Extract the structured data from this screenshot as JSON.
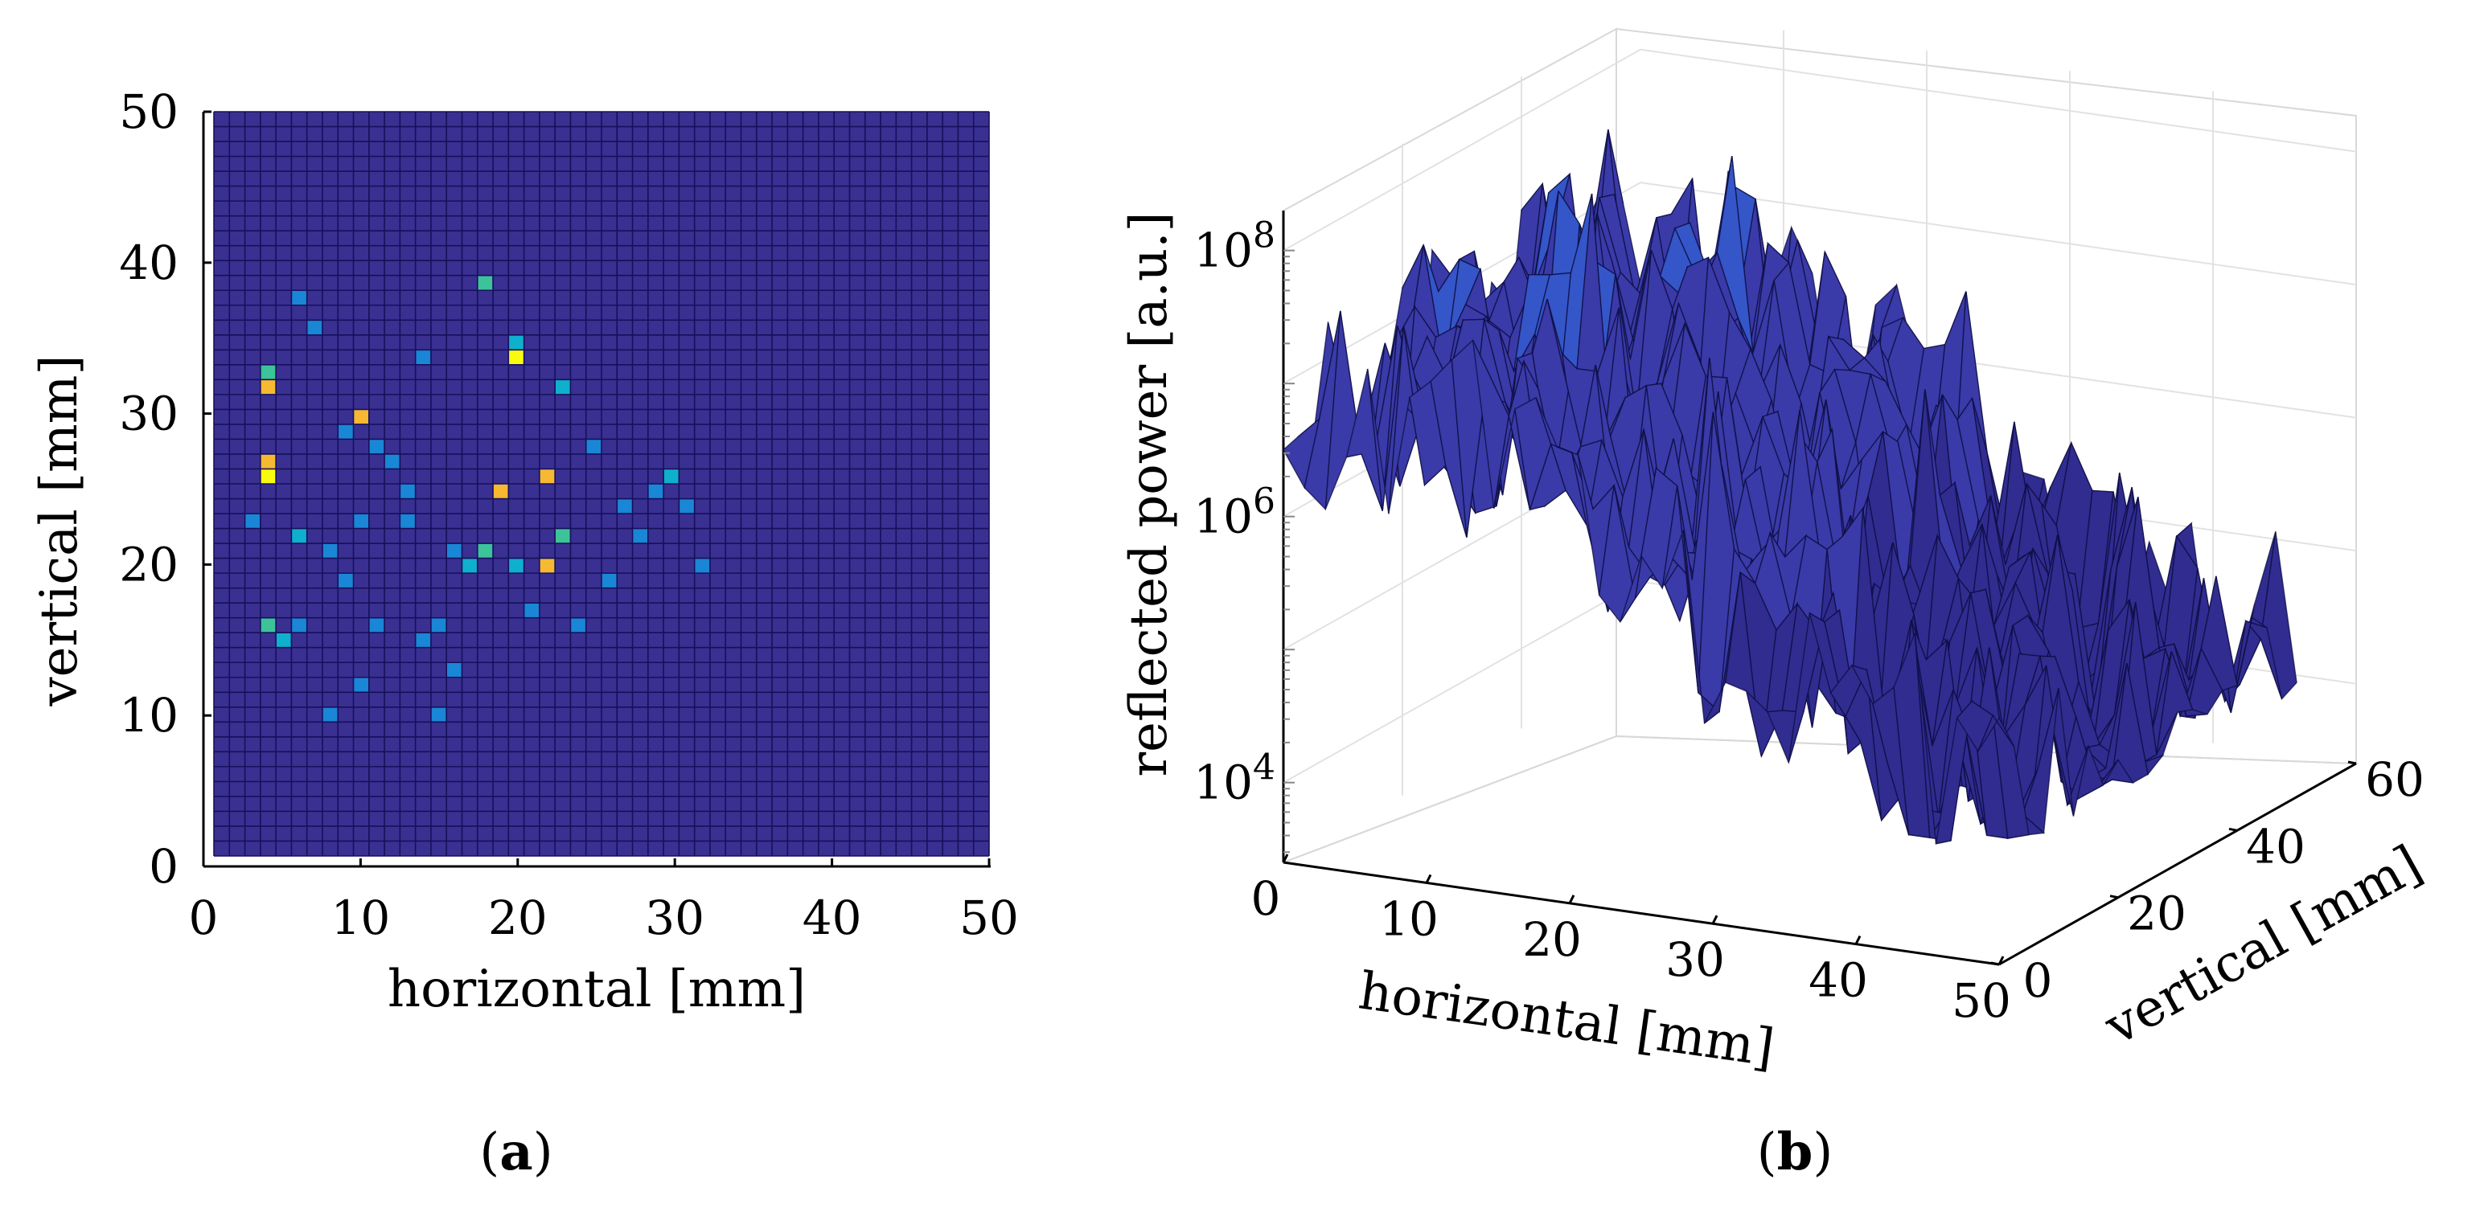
{
  "chart_data": [
    {
      "type": "heatmap",
      "panel_label": {
        "open": "(",
        "letter": "a",
        "close": ")"
      },
      "xlabel": "horizontal [mm]",
      "ylabel": "vertical [mm]",
      "xlim": [
        0,
        50
      ],
      "ylim": [
        0,
        50
      ],
      "x_ticks": [
        "0",
        "10",
        "20",
        "30",
        "40",
        "50"
      ],
      "y_ticks": [
        "0",
        "10",
        "20",
        "30",
        "40",
        "50"
      ],
      "grid_cells": [
        50,
        50
      ],
      "colormap": [
        "#352a87",
        "#2e4fd0",
        "#1a86d6",
        "#0fb0cd",
        "#3cc39a",
        "#a7c044",
        "#f6b931",
        "#f9fb0e"
      ],
      "background_color": "#3a3092",
      "cell_border_color": "#15105a",
      "hotspots": [
        {
          "x": 3,
          "y": 31,
          "level": 6
        },
        {
          "x": 3,
          "y": 32,
          "level": 4
        },
        {
          "x": 3,
          "y": 26,
          "level": 6
        },
        {
          "x": 3,
          "y": 25,
          "level": 7
        },
        {
          "x": 3,
          "y": 15,
          "level": 4
        },
        {
          "x": 4,
          "y": 14,
          "level": 3
        },
        {
          "x": 9,
          "y": 29,
          "level": 6
        },
        {
          "x": 8,
          "y": 28,
          "level": 2
        },
        {
          "x": 10,
          "y": 27,
          "level": 2
        },
        {
          "x": 11,
          "y": 26,
          "level": 2
        },
        {
          "x": 19,
          "y": 33,
          "level": 7
        },
        {
          "x": 19,
          "y": 34,
          "level": 3
        },
        {
          "x": 17,
          "y": 38,
          "level": 4
        },
        {
          "x": 22,
          "y": 31,
          "level": 3
        },
        {
          "x": 18,
          "y": 24,
          "level": 6
        },
        {
          "x": 21,
          "y": 25,
          "level": 6
        },
        {
          "x": 21,
          "y": 19,
          "level": 6
        },
        {
          "x": 22,
          "y": 21,
          "level": 4
        },
        {
          "x": 17,
          "y": 20,
          "level": 4
        },
        {
          "x": 16,
          "y": 19,
          "level": 3
        },
        {
          "x": 19,
          "y": 19,
          "level": 3
        },
        {
          "x": 15,
          "y": 20,
          "level": 2
        },
        {
          "x": 12,
          "y": 24,
          "level": 2
        },
        {
          "x": 12,
          "y": 22,
          "level": 2
        },
        {
          "x": 5,
          "y": 21,
          "level": 3
        },
        {
          "x": 7,
          "y": 20,
          "level": 2
        },
        {
          "x": 9,
          "y": 22,
          "level": 2
        },
        {
          "x": 29,
          "y": 25,
          "level": 3
        },
        {
          "x": 28,
          "y": 24,
          "level": 2
        },
        {
          "x": 30,
          "y": 23,
          "level": 2
        },
        {
          "x": 26,
          "y": 23,
          "level": 2
        },
        {
          "x": 24,
          "y": 27,
          "level": 2
        },
        {
          "x": 13,
          "y": 33,
          "level": 2
        },
        {
          "x": 5,
          "y": 37,
          "level": 2
        },
        {
          "x": 6,
          "y": 35,
          "level": 2
        },
        {
          "x": 13,
          "y": 14,
          "level": 2
        },
        {
          "x": 9,
          "y": 11,
          "level": 2
        },
        {
          "x": 7,
          "y": 9,
          "level": 2
        },
        {
          "x": 14,
          "y": 9,
          "level": 2
        },
        {
          "x": 15,
          "y": 12,
          "level": 2
        },
        {
          "x": 23,
          "y": 15,
          "level": 2
        },
        {
          "x": 20,
          "y": 16,
          "level": 2
        },
        {
          "x": 25,
          "y": 18,
          "level": 2
        },
        {
          "x": 8,
          "y": 18,
          "level": 2
        },
        {
          "x": 5,
          "y": 15,
          "level": 2
        },
        {
          "x": 14,
          "y": 15,
          "level": 2
        },
        {
          "x": 27,
          "y": 21,
          "level": 2
        },
        {
          "x": 31,
          "y": 19,
          "level": 2
        },
        {
          "x": 10,
          "y": 15,
          "level": 2
        },
        {
          "x": 2,
          "y": 22,
          "level": 2
        }
      ]
    },
    {
      "type": "surface",
      "panel_label": {
        "open": "(",
        "letter": "b",
        "close": ")"
      },
      "xlabel": "horizontal [mm]",
      "ylabel": "vertical [mm]",
      "zlabel": "reflected power [a.u.]",
      "zscale": "log",
      "x_ticks": [
        "0",
        "10",
        "20",
        "30",
        "40",
        "50"
      ],
      "y_ticks": [
        "0",
        "20",
        "40",
        "60"
      ],
      "z_ticks": [
        {
          "base": "10",
          "exp": "4"
        },
        {
          "base": "10",
          "exp": "6"
        },
        {
          "base": "10",
          "exp": "8"
        }
      ],
      "zlim_log10": [
        3.4,
        8.3
      ],
      "surface_color": "#3a3aa8",
      "surface_edge_color": "#0c0c40",
      "trend": "high reflected power (~10^7–10^8) at low horizontal positions, decaying to ~10^4.5–10^5.5 near 50 mm"
    }
  ]
}
